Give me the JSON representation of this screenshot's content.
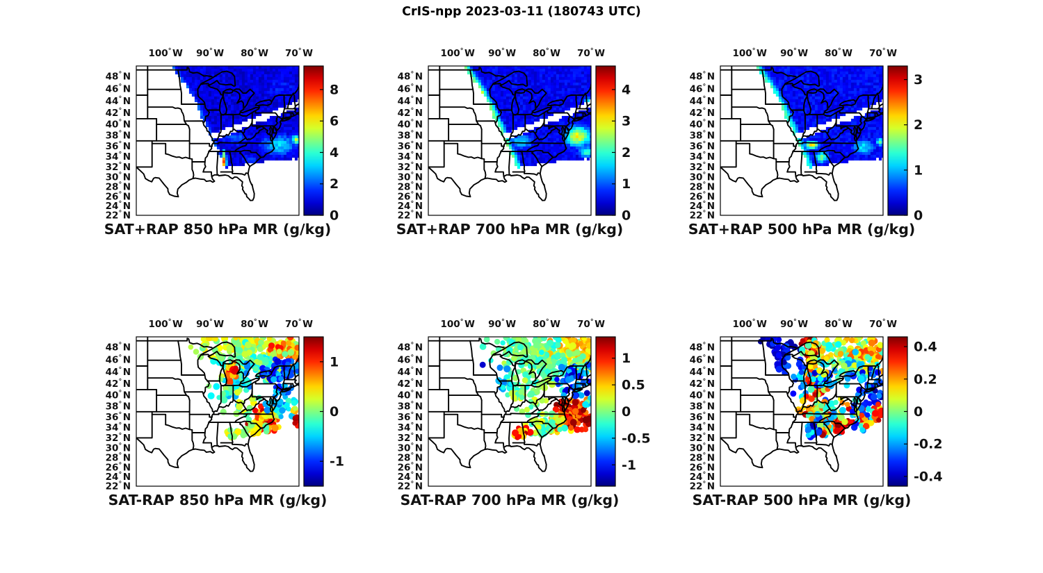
{
  "figure": {
    "title": "CrIS-npp 2023-03-11 (180743 UTC)",
    "satellite": "CrIS-npp",
    "date": "2023-03-11",
    "time_utc": "180743 UTC",
    "background": "#ffffff",
    "text_color": "#111111"
  },
  "map_axes": {
    "projection": "mercator",
    "lon_min": -106.6,
    "lon_max": -70.0,
    "lat_min": 22.0,
    "lat_max": 49.6,
    "degree_symbol": "°",
    "lon_ticks": {
      "values": [
        -100,
        -90,
        -80,
        -70
      ],
      "labels": [
        "100",
        "90",
        "80",
        "70"
      ],
      "suffix": "W"
    },
    "lat_ticks": {
      "values": [
        48,
        46,
        44,
        42,
        40,
        38,
        36,
        34,
        32,
        30,
        28,
        26,
        24,
        22
      ],
      "labels": [
        "48",
        "46",
        "44",
        "42",
        "40",
        "38",
        "36",
        "34",
        "32",
        "30",
        "28",
        "26",
        "24",
        "22"
      ],
      "suffix": "N"
    },
    "swath": {
      "west_edge": [
        [
          49.6,
          -98.5
        ],
        [
          46.0,
          -95.0
        ],
        [
          43.0,
          -92.7
        ],
        [
          40.0,
          -90.9
        ],
        [
          37.0,
          -89.3
        ],
        [
          34.0,
          -87.8
        ],
        [
          31.5,
          -86.7
        ]
      ],
      "south_edge": [
        [
          -86.7,
          31.8
        ],
        [
          -80.0,
          32.8
        ],
        [
          -75.0,
          33.2
        ],
        [
          -70.0,
          33.7
        ]
      ],
      "gap": {
        "lon0": -91.8,
        "lat0": 37.1,
        "slope": 0.293,
        "half_width": 0.55
      }
    }
  },
  "chart_data": [
    {
      "id": "sat_plus_rap_850",
      "type": "map_field",
      "row": 0,
      "col": 0,
      "title": "SAT+RAP 850 hPa MR (g/kg)",
      "colorbar": {
        "colormap": "jet",
        "vmin": 0,
        "vmax": 9.5,
        "ticks": [
          0,
          2,
          4,
          6,
          8
        ],
        "tick_labels": [
          "0",
          "2",
          "4",
          "6",
          "8"
        ]
      },
      "base_value": 0.9,
      "edge_band": {
        "width": 1.1,
        "value": 2.0
      },
      "features": [
        {
          "lon": -84.0,
          "lat": 37.3,
          "rlon": 4.0,
          "rlat": 1.6,
          "value": 2.0
        },
        {
          "lon": -74.5,
          "lat": 36.2,
          "rlon": 4.5,
          "rlat": 2.2,
          "value": 3.2
        },
        {
          "lon": -70.6,
          "lat": 37.2,
          "rlon": 1.2,
          "rlat": 0.9,
          "value": 5.2
        },
        {
          "lon": -86.75,
          "lat": 33.0,
          "rlon": 0.45,
          "rlat": 1.4,
          "value": 8.8
        },
        {
          "lon": -86.9,
          "lat": 34.6,
          "rlon": 0.5,
          "rlat": 0.8,
          "value": 4.5
        },
        {
          "lon": -81.0,
          "lat": 33.4,
          "rlon": 2.0,
          "rlat": 1.0,
          "value": 2.2
        },
        {
          "lon": -74.0,
          "lat": 46.0,
          "rlon": 6.0,
          "rlat": 3.0,
          "value": 1.35
        }
      ]
    },
    {
      "id": "sat_plus_rap_700",
      "type": "map_field",
      "row": 0,
      "col": 1,
      "title": "SAT+RAP 700 hPa MR (g/kg)",
      "colorbar": {
        "colormap": "jet",
        "vmin": 0,
        "vmax": 4.75,
        "ticks": [
          0,
          1,
          2,
          3,
          4
        ],
        "tick_labels": [
          "0",
          "1",
          "2",
          "3",
          "4"
        ]
      },
      "base_value": 0.55,
      "edge_band": {
        "width": 1.4,
        "value": 2.3
      },
      "features": [
        {
          "lon": -94.3,
          "lat": 45.0,
          "rlon": 0.5,
          "rlat": 0.8,
          "value": 4.2
        },
        {
          "lon": -91.2,
          "lat": 39.9,
          "rlon": 0.35,
          "rlat": 0.9,
          "value": 4.7
        },
        {
          "lon": -90.6,
          "lat": 36.9,
          "rlon": 0.4,
          "rlat": 0.5,
          "value": 3.8
        },
        {
          "lon": -89.8,
          "lat": 35.0,
          "rlon": 0.35,
          "rlat": 1.2,
          "value": 4.7
        },
        {
          "lon": -85.5,
          "lat": 36.8,
          "rlon": 3.0,
          "rlat": 1.4,
          "value": 1.7
        },
        {
          "lon": -73.0,
          "lat": 37.8,
          "rlon": 3.2,
          "rlat": 2.0,
          "value": 2.9
        },
        {
          "lon": -71.0,
          "lat": 34.9,
          "rlon": 2.0,
          "rlat": 1.1,
          "value": 2.1
        },
        {
          "lon": -70.6,
          "lat": 43.8,
          "rlon": 1.2,
          "rlat": 1.0,
          "value": 1.9
        }
      ]
    },
    {
      "id": "sat_plus_rap_500",
      "type": "map_field",
      "row": 0,
      "col": 2,
      "title": "SAT+RAP 500 hPa MR (g/kg)",
      "colorbar": {
        "colormap": "jet",
        "vmin": 0,
        "vmax": 3.3,
        "ticks": [
          0,
          1,
          2,
          3
        ],
        "tick_labels": [
          "0",
          "1",
          "2",
          "3"
        ]
      },
      "base_value": 0.42,
      "edge_band": {
        "width": 1.5,
        "value": 1.45
      },
      "features": [
        {
          "lon": -86.0,
          "lat": 36.2,
          "rlon": 1.7,
          "rlat": 0.8,
          "value": 2.2
        },
        {
          "lon": -83.8,
          "lat": 33.9,
          "rlon": 1.6,
          "rlat": 1.2,
          "value": 1.6
        },
        {
          "lon": -74.5,
          "lat": 35.8,
          "rlon": 3.0,
          "rlat": 1.6,
          "value": 1.15
        },
        {
          "lon": -70.8,
          "lat": 36.8,
          "rlon": 1.0,
          "rlat": 0.8,
          "value": 1.5
        }
      ]
    },
    {
      "id": "sat_minus_rap_850",
      "type": "map_scatter",
      "row": 1,
      "col": 0,
      "title": "SAT-RAP 850 hPa MR (g/kg)",
      "colorbar": {
        "colormap": "jet",
        "vmin": -1.5,
        "vmax": 1.5,
        "ticks": [
          -1,
          0,
          1
        ],
        "tick_labels": [
          "-1",
          "0",
          "1"
        ]
      },
      "clusters": [
        {
          "lon": -84.0,
          "lat": 48.3,
          "slon": 4.5,
          "slat": 1.2,
          "n": 90,
          "vmin": -0.1,
          "vmax": 0.5
        },
        {
          "lon": -76.5,
          "lat": 48.5,
          "slon": 3.0,
          "slat": 1.0,
          "n": 60,
          "vmin": 0.0,
          "vmax": 0.55
        },
        {
          "lon": -72.6,
          "lat": 46.8,
          "slon": 1.8,
          "slat": 1.2,
          "n": 45,
          "vmin": 0.45,
          "vmax": 1.1
        },
        {
          "lon": -80.0,
          "lat": 45.8,
          "slon": 4.0,
          "slat": 1.5,
          "n": 110,
          "vmin": -0.45,
          "vmax": 0.25
        },
        {
          "lon": -74.3,
          "lat": 42.9,
          "slon": 1.8,
          "slat": 1.4,
          "n": 70,
          "vmin": -1.35,
          "vmax": -0.45
        },
        {
          "lon": -71.5,
          "lat": 44.3,
          "slon": 1.0,
          "slat": 0.9,
          "n": 25,
          "vmin": -1.2,
          "vmax": -0.5
        },
        {
          "lon": -83.5,
          "lat": 42.6,
          "slon": 1.6,
          "slat": 1.2,
          "n": 40,
          "vmin": -0.9,
          "vmax": -0.1
        },
        {
          "lon": -85.6,
          "lat": 43.9,
          "slon": 0.7,
          "slat": 0.9,
          "n": 18,
          "vmin": 0.4,
          "vmax": 1.1
        },
        {
          "lon": -84.3,
          "lat": 44.4,
          "slon": 0.4,
          "slat": 0.4,
          "n": 5,
          "vmin": 1.0,
          "vmax": 1.45
        },
        {
          "lon": -87.0,
          "lat": 40.3,
          "slon": 2.5,
          "slat": 1.5,
          "n": 22,
          "vmin": -0.6,
          "vmax": 0.2
        },
        {
          "lon": -82.5,
          "lat": 38.7,
          "slon": 2.0,
          "slat": 1.0,
          "n": 18,
          "vmin": -0.2,
          "vmax": 0.4
        },
        {
          "lon": -77.8,
          "lat": 35.0,
          "slon": 1.6,
          "slat": 1.3,
          "n": 85,
          "vmin": 0.4,
          "vmax": 1.35
        },
        {
          "lon": -76.5,
          "lat": 36.8,
          "slon": 1.0,
          "slat": 0.8,
          "n": 20,
          "vmin": 0.1,
          "vmax": 0.6
        },
        {
          "lon": -74.8,
          "lat": 38.0,
          "slon": 1.4,
          "slat": 1.0,
          "n": 25,
          "vmin": -0.9,
          "vmax": -0.1
        },
        {
          "lon": -80.5,
          "lat": 33.5,
          "slon": 1.5,
          "slat": 0.9,
          "n": 30,
          "vmin": -0.2,
          "vmax": 0.5
        },
        {
          "lon": -86.8,
          "lat": 31.9,
          "slon": 0.4,
          "slat": 0.4,
          "n": 5,
          "vmin": 1.1,
          "vmax": 1.45
        },
        {
          "lon": -84.8,
          "lat": 32.3,
          "slon": 1.2,
          "slat": 0.7,
          "n": 15,
          "vmin": -0.1,
          "vmax": 0.6
        },
        {
          "lon": -94.7,
          "lat": 45.2,
          "slon": 0.15,
          "slat": 0.15,
          "n": 2,
          "vmin": -0.6,
          "vmax": -0.5
        },
        {
          "lon": -71.2,
          "lat": 39.0,
          "slon": 0.3,
          "slat": 0.3,
          "n": 3,
          "vmin": -0.6,
          "vmax": -0.3
        },
        {
          "lon": -70.9,
          "lat": 37.4,
          "slon": 0.3,
          "slat": 0.4,
          "n": 5,
          "vmin": 0.1,
          "vmax": 0.7
        },
        {
          "lon": -70.4,
          "lat": 35.8,
          "slon": 0.25,
          "slat": 0.25,
          "n": 3,
          "vmin": 1.3,
          "vmax": 1.5
        },
        {
          "lon": -70.6,
          "lat": 34.4,
          "slon": 0.3,
          "slat": 0.25,
          "n": 3,
          "vmin": 0.9,
          "vmax": 1.4
        }
      ]
    },
    {
      "id": "sat_minus_rap_700",
      "type": "map_scatter",
      "row": 1,
      "col": 1,
      "title": "SAT-RAP 700 hPa MR (g/kg)",
      "colorbar": {
        "colormap": "jet",
        "vmin": -1.4,
        "vmax": 1.4,
        "ticks": [
          -1,
          -0.5,
          0,
          0.5,
          1
        ],
        "tick_labels": [
          "-1",
          "-0.5",
          "0",
          "0.5",
          "1"
        ]
      },
      "clusters": [
        {
          "lon": -83.0,
          "lat": 47.8,
          "slon": 5.0,
          "slat": 1.4,
          "n": 130,
          "vmin": -0.3,
          "vmax": 0.2
        },
        {
          "lon": -73.5,
          "lat": 48.0,
          "slon": 2.5,
          "slat": 1.3,
          "n": 70,
          "vmin": 0.25,
          "vmax": 0.7
        },
        {
          "lon": -71.5,
          "lat": 45.5,
          "slon": 1.3,
          "slat": 1.2,
          "n": 35,
          "vmin": 0.2,
          "vmax": 0.6
        },
        {
          "lon": -80.0,
          "lat": 45.0,
          "slon": 4.5,
          "slat": 1.8,
          "n": 130,
          "vmin": -0.35,
          "vmax": 0.15
        },
        {
          "lon": -74.0,
          "lat": 42.9,
          "slon": 1.6,
          "slat": 1.3,
          "n": 55,
          "vmin": -1.3,
          "vmax": -0.4
        },
        {
          "lon": -84.5,
          "lat": 41.5,
          "slon": 2.5,
          "slat": 1.5,
          "n": 50,
          "vmin": -0.35,
          "vmax": 0.25
        },
        {
          "lon": -89.3,
          "lat": 42.7,
          "slon": 0.9,
          "slat": 1.1,
          "n": 12,
          "vmin": -0.8,
          "vmax": -0.3
        },
        {
          "lon": -94.3,
          "lat": 45.3,
          "slon": 0.1,
          "slat": 0.1,
          "n": 1,
          "vmin": -1.2,
          "vmax": -1.1
        },
        {
          "lon": -74.3,
          "lat": 36.6,
          "slon": 2.0,
          "slat": 1.3,
          "n": 100,
          "vmin": 0.6,
          "vmax": 1.4
        },
        {
          "lon": -77.5,
          "lat": 34.8,
          "slon": 1.3,
          "slat": 0.9,
          "n": 35,
          "vmin": 0.3,
          "vmax": 1.0
        },
        {
          "lon": -80.5,
          "lat": 33.8,
          "slon": 2.2,
          "slat": 1.2,
          "n": 55,
          "vmin": -0.25,
          "vmax": 0.35
        },
        {
          "lon": -85.8,
          "lat": 32.2,
          "slon": 1.5,
          "slat": 0.8,
          "n": 40,
          "vmin": 0.35,
          "vmax": 1.3
        },
        {
          "lon": -84.5,
          "lat": 38.5,
          "slon": 2.0,
          "slat": 1.2,
          "n": 25,
          "vmin": -0.2,
          "vmax": 0.3
        },
        {
          "lon": -73.6,
          "lat": 40.2,
          "slon": 0.3,
          "slat": 0.3,
          "n": 3,
          "vmin": -1.3,
          "vmax": -0.9
        },
        {
          "lon": -71.0,
          "lat": 43.5,
          "slon": 0.8,
          "slat": 0.8,
          "n": 12,
          "vmin": -0.9,
          "vmax": -0.3
        },
        {
          "lon": -70.6,
          "lat": 38.8,
          "slon": 0.4,
          "slat": 0.5,
          "n": 5,
          "vmin": -0.6,
          "vmax": 0.0
        }
      ]
    },
    {
      "id": "sat_minus_rap_500",
      "type": "map_scatter",
      "row": 1,
      "col": 2,
      "title": "SAT-RAP 500 hPa MR (g/kg)",
      "colorbar": {
        "colormap": "jet",
        "vmin": -0.46,
        "vmax": 0.46,
        "ticks": [
          -0.4,
          -0.2,
          0,
          0.2,
          0.4
        ],
        "tick_labels": [
          "-0.4",
          "-0.2",
          "0",
          "0.2",
          "0.4"
        ]
      },
      "clusters": [
        {
          "lon": -95.3,
          "lat": 48.6,
          "slon": 1.3,
          "slat": 0.8,
          "n": 22,
          "vmin": -0.46,
          "vmax": -0.3
        },
        {
          "lon": -93.8,
          "lat": 46.7,
          "slon": 1.2,
          "slat": 1.2,
          "n": 18,
          "vmin": -0.46,
          "vmax": -0.28
        },
        {
          "lon": -91.5,
          "lat": 47.9,
          "slon": 1.3,
          "slat": 0.8,
          "n": 16,
          "vmin": -0.44,
          "vmax": -0.25
        },
        {
          "lon": -92.7,
          "lat": 44.9,
          "slon": 0.9,
          "slat": 0.8,
          "n": 10,
          "vmin": -0.44,
          "vmax": -0.25
        },
        {
          "lon": -86.6,
          "lat": 48.8,
          "slon": 1.2,
          "slat": 0.6,
          "n": 18,
          "vmin": 0.3,
          "vmax": 0.46
        },
        {
          "lon": -86.0,
          "lat": 45.5,
          "slon": 0.8,
          "slat": 1.8,
          "n": 45,
          "vmin": 0.15,
          "vmax": 0.46
        },
        {
          "lon": -85.3,
          "lat": 42.8,
          "slon": 0.9,
          "slat": 1.5,
          "n": 40,
          "vmin": 0.1,
          "vmax": 0.46
        },
        {
          "lon": -84.5,
          "lat": 39.8,
          "slon": 1.2,
          "slat": 1.5,
          "n": 30,
          "vmin": 0.0,
          "vmax": 0.44
        },
        {
          "lon": -83.3,
          "lat": 42.3,
          "slon": 1.5,
          "slat": 1.0,
          "n": 25,
          "vmin": -0.4,
          "vmax": -0.1
        },
        {
          "lon": -79.0,
          "lat": 47.3,
          "slon": 4.0,
          "slat": 1.6,
          "n": 130,
          "vmin": -0.12,
          "vmax": 0.2
        },
        {
          "lon": -73.5,
          "lat": 47.0,
          "slon": 2.5,
          "slat": 1.5,
          "n": 60,
          "vmin": 0.05,
          "vmax": 0.3
        },
        {
          "lon": -76.5,
          "lat": 44.5,
          "slon": 3.0,
          "slat": 1.2,
          "n": 60,
          "vmin": -0.25,
          "vmax": 0.1
        },
        {
          "lon": -73.0,
          "lat": 42.3,
          "slon": 1.6,
          "slat": 1.3,
          "n": 45,
          "vmin": -0.4,
          "vmax": -0.1
        },
        {
          "lon": -71.2,
          "lat": 39.8,
          "slon": 0.8,
          "slat": 1.0,
          "n": 15,
          "vmin": -0.44,
          "vmax": -0.2
        },
        {
          "lon": -88.5,
          "lat": 43.5,
          "slon": 1.0,
          "slat": 1.8,
          "n": 20,
          "vmin": -0.35,
          "vmax": -0.05
        },
        {
          "lon": -87.5,
          "lat": 38.5,
          "slon": 1.0,
          "slat": 1.0,
          "n": 12,
          "vmin": 0.1,
          "vmax": 0.44
        },
        {
          "lon": -84.0,
          "lat": 34.8,
          "slon": 2.5,
          "slat": 1.6,
          "n": 90,
          "vmin": -0.2,
          "vmax": 0.46
        },
        {
          "lon": -86.0,
          "lat": 33.2,
          "slon": 1.2,
          "slat": 0.9,
          "n": 25,
          "vmin": -0.44,
          "vmax": -0.1
        },
        {
          "lon": -79.5,
          "lat": 34.2,
          "slon": 1.2,
          "slat": 0.8,
          "n": 20,
          "vmin": 0.3,
          "vmax": 0.46
        },
        {
          "lon": -82.0,
          "lat": 37.8,
          "slon": 1.5,
          "slat": 1.0,
          "n": 25,
          "vmin": -0.3,
          "vmax": 0.3
        },
        {
          "lon": -74.5,
          "lat": 36.2,
          "slon": 2.5,
          "slat": 1.3,
          "n": 70,
          "vmin": -0.35,
          "vmax": 0.4
        },
        {
          "lon": -70.9,
          "lat": 36.8,
          "slon": 0.6,
          "slat": 0.8,
          "n": 12,
          "vmin": 0.2,
          "vmax": 0.44
        }
      ]
    }
  ]
}
